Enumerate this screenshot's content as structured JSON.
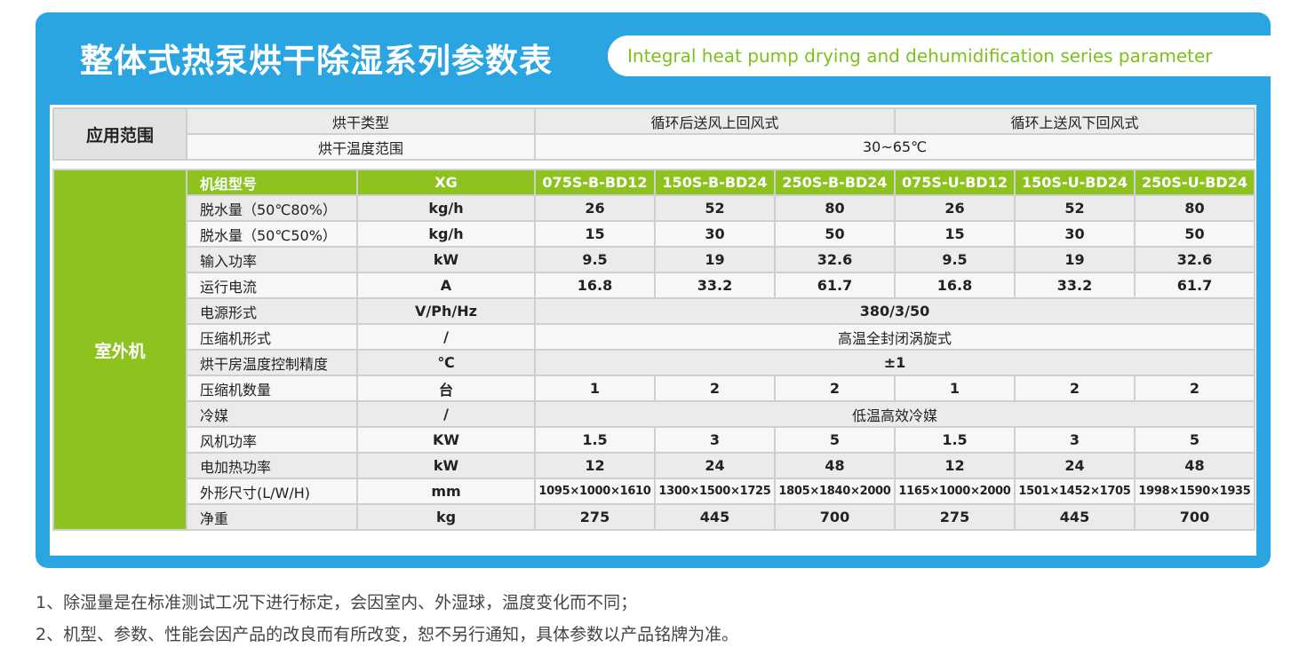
{
  "header": {
    "title": "整体式热泵烘干除湿系列参数表",
    "subtitle": "Integral heat pump drying and dehumidification series parameter"
  },
  "application": {
    "label": "应用范围",
    "rows": [
      [
        "烘干类型",
        "循环后送风上回风式",
        "循环上送风下回风式"
      ],
      [
        "烘干温度范围",
        "30~65℃"
      ]
    ]
  },
  "outdoor": {
    "label": "室外机",
    "header": [
      "机组型号",
      "XG",
      "075S-B-BD12",
      "150S-B-BD24",
      "250S-B-BD24",
      "075S-U-BD12",
      "150S-U-BD24",
      "250S-U-BD24"
    ],
    "rows": [
      [
        "脱水量（50℃80%）",
        "kg/h",
        "26",
        "52",
        "80",
        "26",
        "52",
        "80"
      ],
      [
        "脱水量（50℃50%）",
        "kg/h",
        "15",
        "30",
        "50",
        "15",
        "30",
        "50"
      ],
      [
        "输入功率",
        "kW",
        "9.5",
        "19",
        "32.6",
        "9.5",
        "19",
        "32.6"
      ],
      [
        "运行电流",
        "A",
        "16.8",
        "33.2",
        "61.7",
        "16.8",
        "33.2",
        "61.7"
      ],
      [
        "电源形式",
        "V/Ph/Hz",
        "380/3/50"
      ],
      [
        "压缩机形式",
        "/",
        "高温全封闭涡旋式"
      ],
      [
        "烘干房温度控制精度",
        "℃",
        "±1"
      ],
      [
        "压缩机数量",
        "台",
        "1",
        "2",
        "2",
        "1",
        "2",
        "2"
      ],
      [
        "冷媒",
        "/",
        "低温高效冷媒"
      ],
      [
        "风机功率",
        "KW",
        "1.5",
        "3",
        "5",
        "1.5",
        "3",
        "5"
      ],
      [
        "电加热功率",
        "kW",
        "12",
        "24",
        "48",
        "12",
        "24",
        "48"
      ],
      [
        "外形尺寸(L/W/H)",
        "mm",
        "1095×1000×1610",
        "1300×1500×1725",
        "1805×1840×2000",
        "1165×1000×2000",
        "1501×1452×1705",
        "1998×1590×1935"
      ],
      [
        "净重",
        "kg",
        "275",
        "445",
        "700",
        "275",
        "445",
        "700"
      ]
    ]
  },
  "notes": [
    "1、除湿量是在标准测试工况下进行标定，会因室内、外湿球，温度变化而不同；",
    "2、机型、参数、性能会因产品的改良而有所改变，恕不另行通知，具体参数以产品铭牌为准。"
  ]
}
